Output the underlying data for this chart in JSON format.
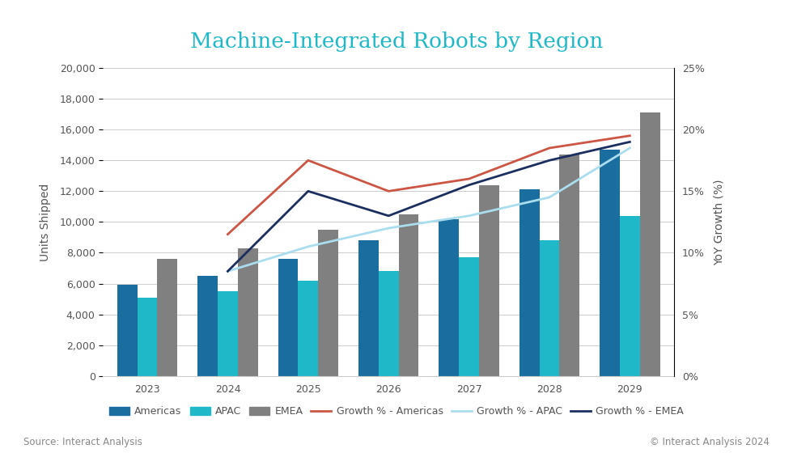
{
  "title": "Machine-Integrated Robots by Region",
  "years": [
    2023,
    2024,
    2025,
    2026,
    2027,
    2028,
    2029
  ],
  "americas": [
    5900,
    6500,
    7600,
    8800,
    10200,
    12100,
    14700
  ],
  "apac": [
    5100,
    5500,
    6200,
    6800,
    7700,
    8800,
    10400
  ],
  "emea": [
    7600,
    8300,
    9500,
    10500,
    12400,
    14400,
    17100
  ],
  "growth_americas": [
    null,
    11.5,
    17.5,
    15.0,
    16.0,
    18.5,
    19.5
  ],
  "growth_apac": [
    null,
    8.5,
    10.5,
    12.0,
    13.0,
    14.5,
    18.5
  ],
  "growth_emea": [
    null,
    8.5,
    15.0,
    13.0,
    15.5,
    17.5,
    19.0
  ],
  "color_americas": "#1a6e9f",
  "color_apac": "#1eb8c8",
  "color_emea": "#808080",
  "color_growth_americas": "#cc5544",
  "color_growth_apac": "#aaddee",
  "color_growth_emea": "#1a2e5f",
  "ylabel_left": "Units Shipped",
  "ylabel_right": "YoY Growth (%)",
  "ylim_left": [
    0,
    20000
  ],
  "ylim_right": [
    0,
    25
  ],
  "yticks_left": [
    0,
    2000,
    4000,
    6000,
    8000,
    10000,
    12000,
    14000,
    16000,
    18000,
    20000
  ],
  "yticks_right": [
    0,
    5,
    10,
    15,
    20,
    25
  ],
  "ytick_labels_right": [
    "0%",
    "5%",
    "10%",
    "15%",
    "20%",
    "25%"
  ],
  "source_left": "Source: Interact Analysis",
  "source_right": "© Interact Analysis 2024",
  "background_color": "#ffffff",
  "bar_width": 0.25,
  "title_color": "#1eb8c8",
  "title_fontsize": 19,
  "axis_label_fontsize": 10,
  "tick_fontsize": 9,
  "legend_fontsize": 9
}
